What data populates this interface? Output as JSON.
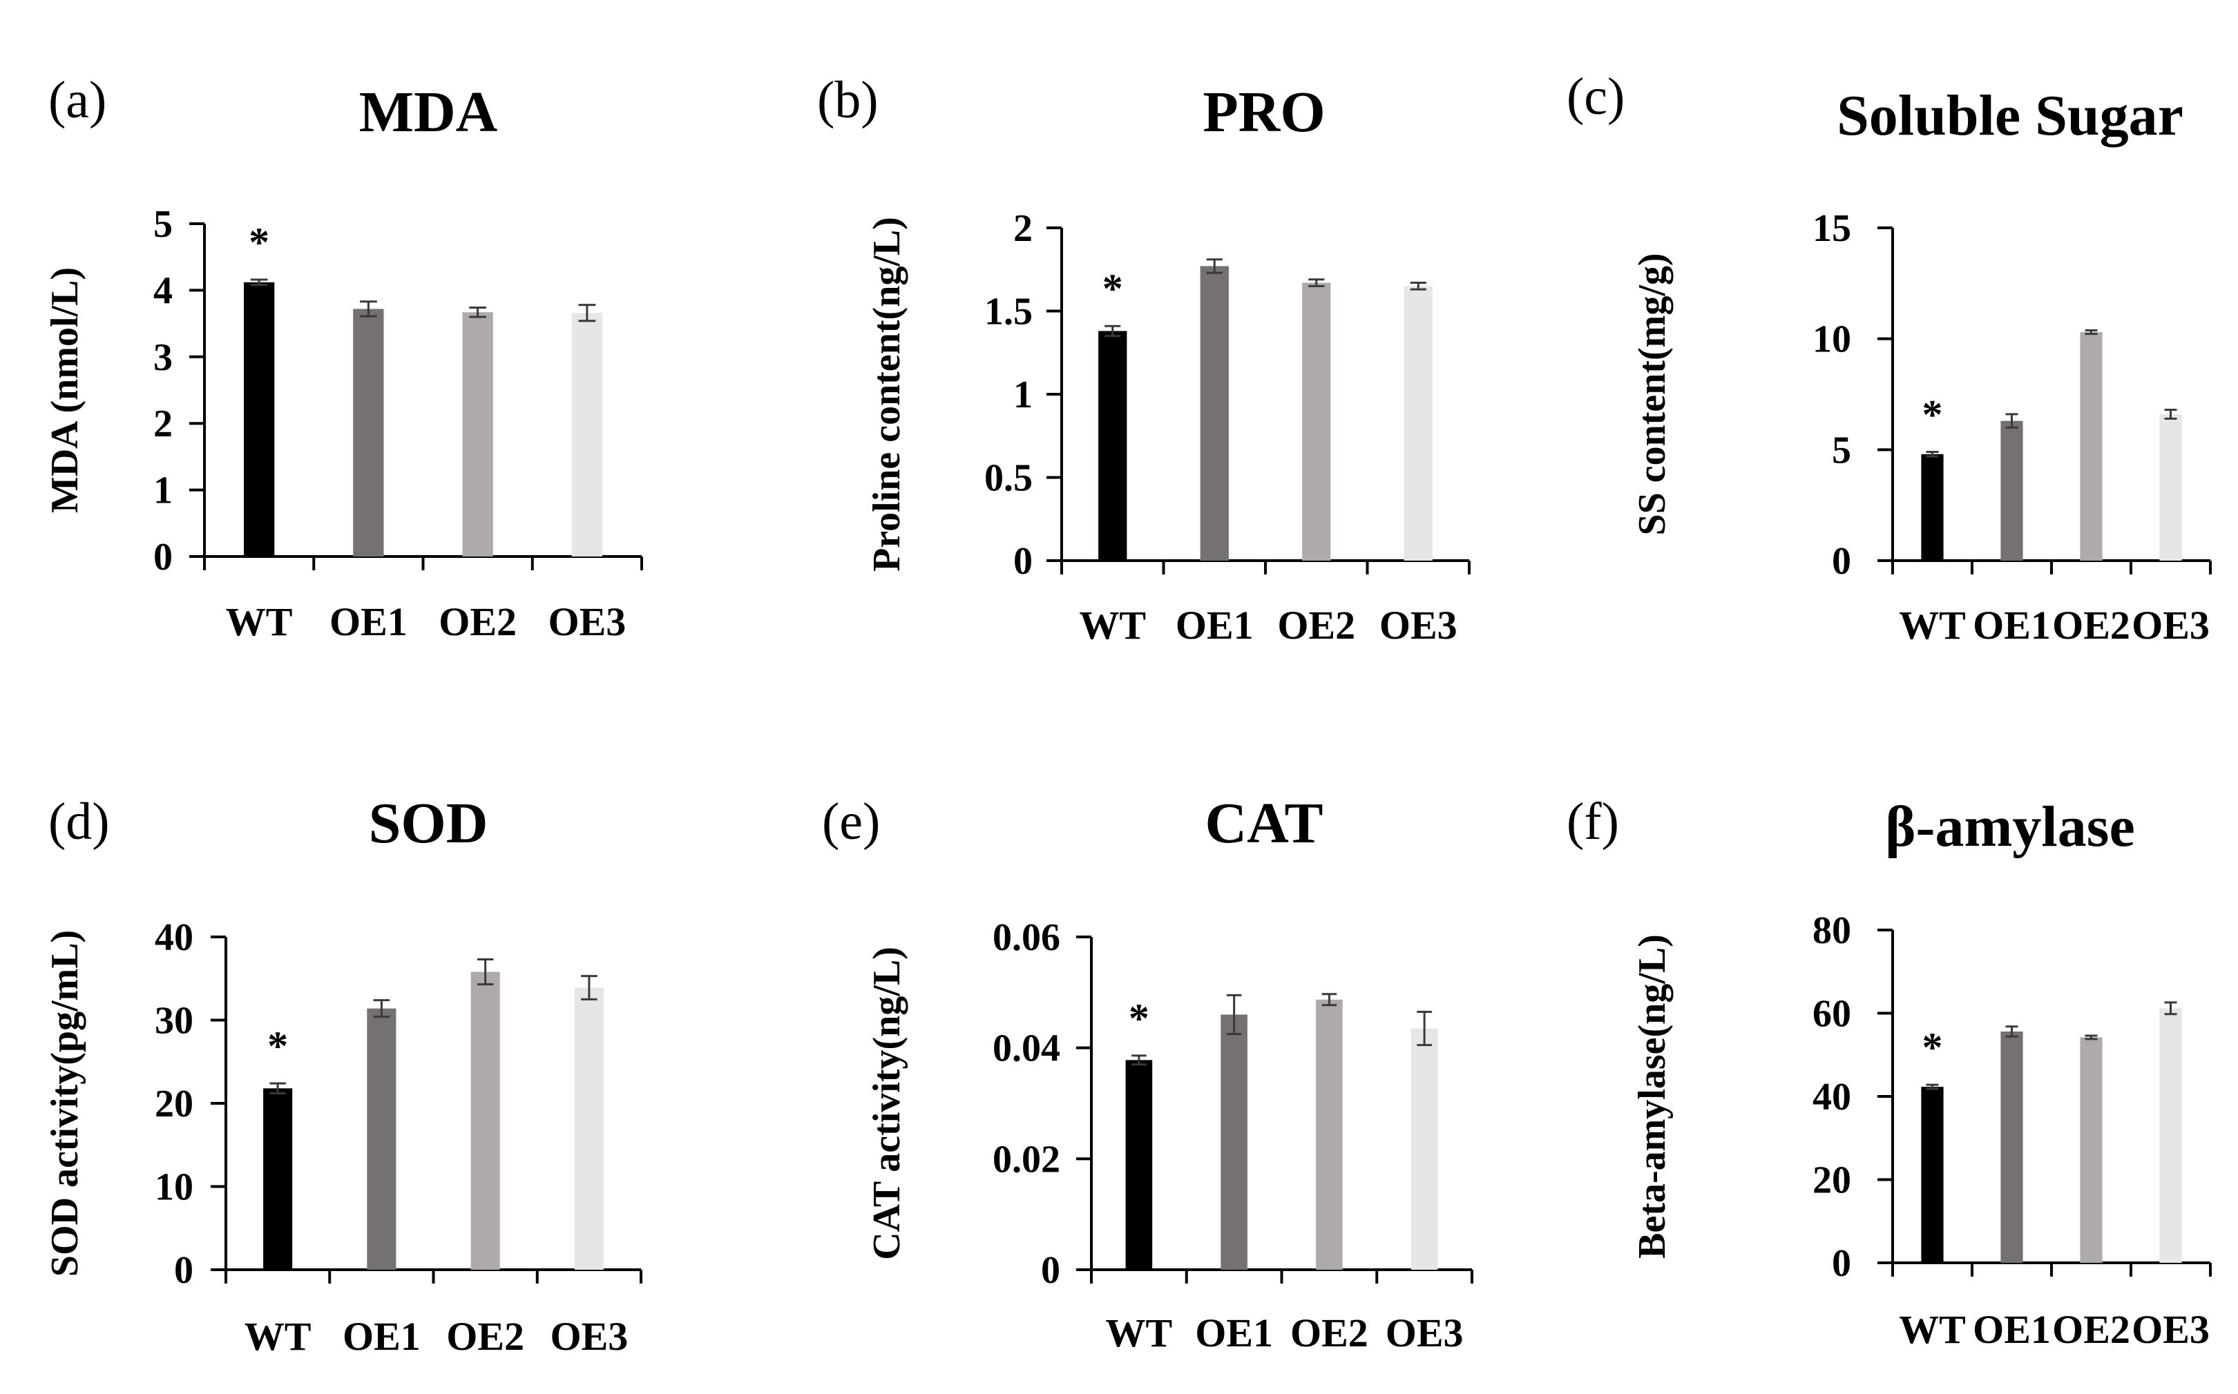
{
  "figure": {
    "bar_colors": [
      "#000000",
      "#767171",
      "#aeaaaa",
      "#e7e6e6"
    ],
    "errorbar_color": "#3b3838"
  },
  "chart_data": [
    {
      "type": "bar",
      "panel": "(a)",
      "title": "MDA",
      "ylabel": "MDA (nmol/L)",
      "categories": [
        "WT",
        "OE1",
        "OE2",
        "OE3"
      ],
      "values": [
        4.12,
        3.72,
        3.67,
        3.66
      ],
      "errors": [
        0.04,
        0.11,
        0.07,
        0.12
      ],
      "ylim": [
        0,
        5
      ],
      "yticks": [
        0,
        1,
        2,
        3,
        4,
        5
      ],
      "ytick_labels": [
        "0",
        "1",
        "2",
        "3",
        "4",
        "5"
      ],
      "significance": [
        "*",
        "",
        "",
        ""
      ]
    },
    {
      "type": "bar",
      "panel": "(b)",
      "title": "PRO",
      "ylabel": "Proline content(ng/L)",
      "categories": [
        "WT",
        "OE1",
        "OE2",
        "OE3"
      ],
      "values": [
        1.38,
        1.77,
        1.67,
        1.65
      ],
      "errors": [
        0.03,
        0.04,
        0.02,
        0.02
      ],
      "ylim": [
        0,
        2
      ],
      "yticks": [
        0,
        0.5,
        1,
        1.5,
        2
      ],
      "ytick_labels": [
        "0",
        "0.5",
        "1",
        "1.5",
        "2"
      ],
      "significance": [
        "*",
        "",
        "",
        ""
      ]
    },
    {
      "type": "bar",
      "panel": "(c)",
      "title": "Soluble Sugar",
      "ylabel": "SS content(mg/g)",
      "categories": [
        "WT",
        "OE1",
        "OE2",
        "OE3"
      ],
      "values": [
        4.8,
        6.3,
        10.3,
        6.6
      ],
      "errors": [
        0.1,
        0.3,
        0.08,
        0.2
      ],
      "ylim": [
        0,
        15
      ],
      "yticks": [
        0,
        5,
        10,
        15
      ],
      "ytick_labels": [
        "0",
        "5",
        "10",
        "15"
      ],
      "significance": [
        "*",
        "",
        "",
        ""
      ]
    },
    {
      "type": "bar",
      "panel": "(d)",
      "title": "SOD",
      "ylabel": "SOD activity(pg/mL)",
      "categories": [
        "WT",
        "OE1",
        "OE2",
        "OE3"
      ],
      "values": [
        21.8,
        31.4,
        35.8,
        33.9
      ],
      "errors": [
        0.6,
        1.0,
        1.5,
        1.4
      ],
      "ylim": [
        0,
        40
      ],
      "yticks": [
        0,
        10,
        20,
        30,
        40
      ],
      "ytick_labels": [
        "0",
        "10",
        "20",
        "30",
        "40"
      ],
      "significance": [
        "*",
        "",
        "",
        ""
      ]
    },
    {
      "type": "bar",
      "panel": "(e)",
      "title": "CAT",
      "ylabel": "CAT activity(ng/L)",
      "categories": [
        "WT",
        "OE1",
        "OE2",
        "OE3"
      ],
      "values": [
        0.0378,
        0.046,
        0.0487,
        0.0435
      ],
      "errors": [
        0.0008,
        0.0035,
        0.001,
        0.003
      ],
      "ylim": [
        0,
        0.06
      ],
      "yticks": [
        0,
        0.02,
        0.04,
        0.06
      ],
      "ytick_labels": [
        "0",
        "0.02",
        "0.04",
        "0.06"
      ],
      "significance": [
        "*",
        "",
        "",
        ""
      ]
    },
    {
      "type": "bar",
      "panel": "(f)",
      "title": "β-amylase",
      "ylabel": "Beta-amylase(ng/L)",
      "categories": [
        "WT",
        "OE1",
        "OE2",
        "OE3"
      ],
      "values": [
        42.3,
        55.6,
        54.2,
        61.2
      ],
      "errors": [
        0.5,
        1.2,
        0.4,
        1.4
      ],
      "ylim": [
        0,
        80
      ],
      "yticks": [
        0,
        20,
        40,
        60,
        80
      ],
      "ytick_labels": [
        "0",
        "20",
        "40",
        "60",
        "80"
      ],
      "significance": [
        "*",
        "",
        "",
        ""
      ]
    }
  ]
}
